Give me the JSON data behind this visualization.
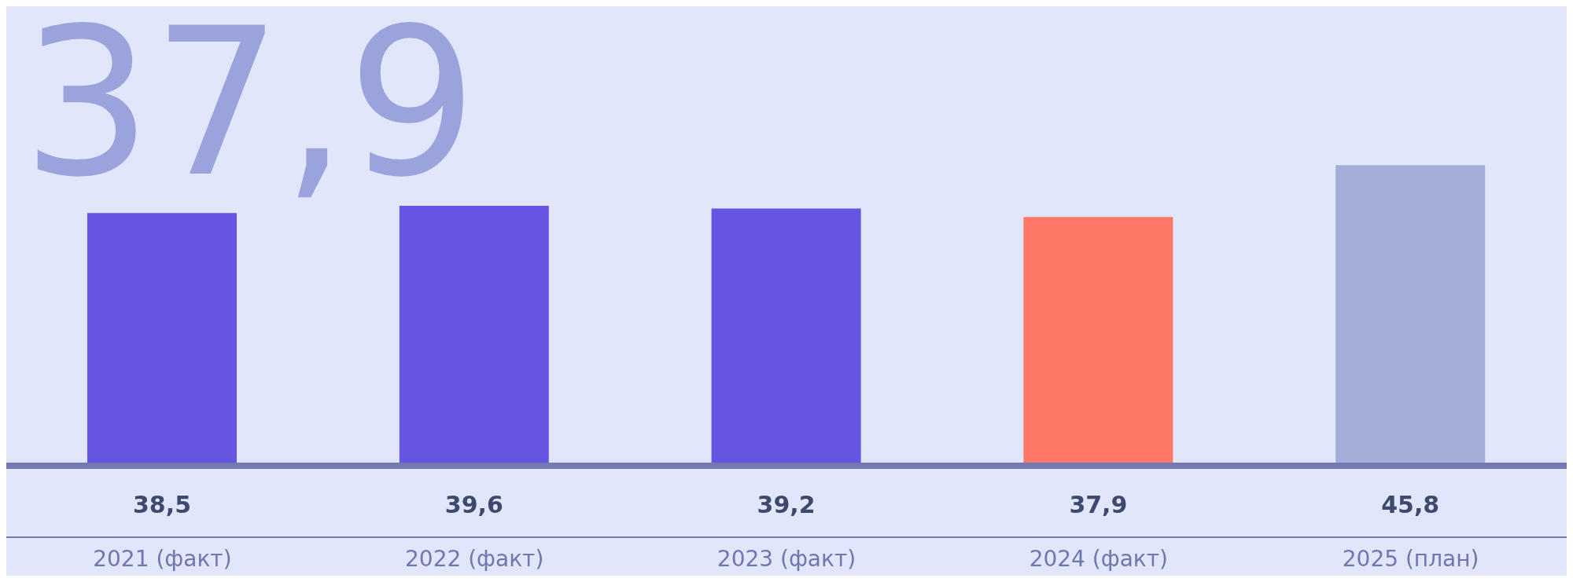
{
  "chart_data": {
    "type": "bar",
    "categories": [
      "2021 (факт)",
      "2022 (факт)",
      "2023 (факт)",
      "2024 (факт)",
      "2025 (план)"
    ],
    "values": [
      38.5,
      39.6,
      39.2,
      37.9,
      45.8
    ],
    "colors": [
      "#6655e3",
      "#6655e3",
      "#6655e3",
      "#ff7866",
      "#a3aed9"
    ],
    "value_labels": [
      "38,5",
      "39,6",
      "39,2",
      "37,9",
      "45,8"
    ],
    "ylim": [
      0,
      70
    ],
    "annotations": [
      "37,9"
    ]
  }
}
